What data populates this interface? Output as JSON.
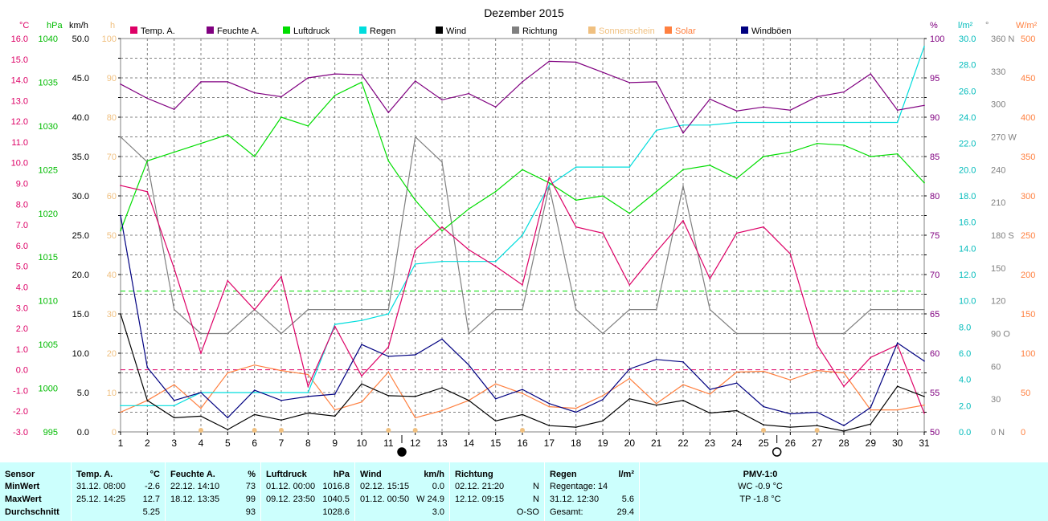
{
  "chart_data": {
    "type": "line",
    "title": "Dezember 2015",
    "x": [
      1,
      2,
      3,
      4,
      5,
      6,
      7,
      8,
      9,
      10,
      11,
      12,
      13,
      14,
      15,
      16,
      17,
      18,
      19,
      20,
      21,
      22,
      23,
      24,
      25,
      26,
      27,
      28,
      29,
      30,
      31
    ],
    "x_tick_labels": [
      "1",
      "2",
      "3",
      "4",
      "5",
      "6",
      "7",
      "8",
      "9",
      "10",
      "11",
      "12",
      "13",
      "14",
      "15",
      "16",
      "17",
      "18",
      "19",
      "20",
      "21",
      "22",
      "23",
      "24",
      "25",
      "26",
      "27",
      "28",
      "29",
      "30",
      "31"
    ],
    "left_axes": [
      {
        "unit": "°C",
        "range": [
          -3.0,
          16.0
        ],
        "tick_labels": [
          "16.0",
          "15.0",
          "14.0",
          "13.0",
          "12.0",
          "11.0",
          "10.0",
          "9.0",
          "8.0",
          "7.0",
          "6.0",
          "5.0",
          "4.0",
          "3.0",
          "2.0",
          "1.0",
          "0.0",
          "-1.0",
          "-2.0",
          "-3.0"
        ]
      },
      {
        "unit": "hPa",
        "range": [
          995,
          1040
        ],
        "tick_labels": [
          "1040",
          "1035",
          "1030",
          "1025",
          "1020",
          "1015",
          "1010",
          "1005",
          "1000",
          "995"
        ]
      },
      {
        "unit": "km/h",
        "range": [
          0.0,
          50.0
        ],
        "tick_labels": [
          "50.0",
          "45.0",
          "40.0",
          "35.0",
          "30.0",
          "25.0",
          "20.0",
          "15.0",
          "10.0",
          "5.0",
          "0.0"
        ]
      },
      {
        "unit": "h",
        "range": [
          0,
          100
        ],
        "tick_labels": [
          "100",
          "90",
          "80",
          "70",
          "60",
          "50",
          "40",
          "30",
          "20",
          "10",
          "0"
        ]
      }
    ],
    "right_axes": [
      {
        "unit": "%",
        "range": [
          50,
          100
        ],
        "tick_labels": [
          "100",
          "95",
          "90",
          "85",
          "80",
          "75",
          "70",
          "65",
          "60",
          "55",
          "50"
        ]
      },
      {
        "unit": "l/m²",
        "range": [
          0.0,
          30.0
        ],
        "tick_labels": [
          "30.0",
          "28.0",
          "26.0",
          "24.0",
          "22.0",
          "20.0",
          "18.0",
          "16.0",
          "14.0",
          "12.0",
          "10.0",
          "8.0",
          "6.0",
          "4.0",
          "2.0",
          "0.0"
        ]
      },
      {
        "unit": "°",
        "range": [
          0,
          360
        ],
        "tick_labels": [
          "360 N",
          "330",
          "300",
          "270 W",
          "240",
          "210",
          "180 S",
          "150",
          "120",
          "90  O",
          "60",
          "30",
          "0  N"
        ]
      },
      {
        "unit": "W/m²",
        "range": [
          0,
          500
        ],
        "tick_labels": [
          "500",
          "450",
          "400",
          "350",
          "300",
          "250",
          "200",
          "150",
          "100",
          "50",
          "0"
        ]
      }
    ],
    "legend": [
      "Temp. A.",
      "Feuchte A.",
      "Luftdruck",
      "Regen",
      "Wind",
      "Richtung",
      "Sonnenschein",
      "Solar",
      "Windböen"
    ],
    "legend_position": "top",
    "grid": true,
    "series": [
      {
        "name": "Temp. A.",
        "axis": "°C",
        "color": "#dd0066",
        "values": [
          8.9,
          8.6,
          4.9,
          0.8,
          4.3,
          2.9,
          4.5,
          -0.8,
          2.1,
          -0.3,
          1.1,
          5.8,
          6.9,
          5.8,
          5.0,
          4.1,
          9.3,
          6.9,
          6.6,
          4.1,
          5.7,
          7.2,
          4.4,
          6.6,
          6.9,
          5.6,
          1.2,
          -0.8,
          0.6,
          1.2,
          -2.1
        ]
      },
      {
        "name": "Feuchte A.",
        "axis": "%",
        "color": "#800080",
        "values": [
          94.2,
          92.4,
          91.0,
          94.5,
          94.5,
          93.1,
          92.6,
          95.0,
          95.5,
          95.4,
          90.6,
          94.6,
          92.2,
          93.0,
          91.3,
          94.5,
          97.1,
          97.0,
          95.7,
          94.4,
          94.5,
          88.0,
          92.3,
          90.8,
          91.3,
          90.9,
          92.6,
          93.2,
          95.5,
          90.9,
          91.5
        ]
      },
      {
        "name": "Luftdruck",
        "axis": "hPa",
        "color": "#00dd00",
        "values": [
          1018.0,
          1026.0,
          1027.0,
          1028.0,
          1029.0,
          1026.5,
          1031.0,
          1030.0,
          1033.5,
          1035.0,
          1026.0,
          1021.5,
          1018.0,
          1020.5,
          1022.5,
          1025.0,
          1023.5,
          1021.5,
          1022.0,
          1020.0,
          1022.5,
          1025.0,
          1025.5,
          1024.0,
          1026.5,
          1027.0,
          1028.0,
          1027.8,
          1026.5,
          1026.8,
          1023.5
        ]
      },
      {
        "name": "Regen",
        "axis": "l/m²",
        "color": "#00dddd",
        "values": [
          2.0,
          2.0,
          2.0,
          3.0,
          3.0,
          3.0,
          3.0,
          3.0,
          8.2,
          8.5,
          9.0,
          12.8,
          13.0,
          13.0,
          13.0,
          15.0,
          18.8,
          20.2,
          20.2,
          20.2,
          23.0,
          23.4,
          23.4,
          23.6,
          23.6,
          23.6,
          23.6,
          23.6,
          23.6,
          23.6,
          29.4
        ]
      },
      {
        "name": "Wind",
        "axis": "km/h",
        "color": "#000000",
        "values": [
          15.0,
          4.0,
          1.8,
          2.0,
          0.3,
          2.2,
          1.5,
          2.4,
          2.0,
          6.1,
          4.6,
          4.5,
          5.6,
          4.0,
          1.4,
          2.2,
          0.8,
          0.6,
          1.4,
          4.2,
          3.4,
          4.0,
          2.4,
          2.7,
          0.9,
          0.6,
          0.8,
          0.1,
          1.0,
          5.8,
          4.5
        ]
      },
      {
        "name": "Richtung",
        "axis": "°",
        "color": "#808080",
        "values": [
          270,
          247,
          112,
          90,
          90,
          112,
          90,
          112,
          112,
          112,
          112,
          270,
          247,
          90,
          112,
          112,
          225,
          112,
          90,
          112,
          112,
          225,
          112,
          90,
          90,
          90,
          90,
          90,
          112,
          112,
          112
        ]
      },
      {
        "name": "Solar",
        "axis": "W/m²",
        "color": "#ff8040",
        "values": [
          25,
          40,
          60,
          30,
          75,
          85,
          78,
          73,
          28,
          38,
          76,
          18,
          27,
          40,
          61,
          49,
          32,
          30,
          46,
          68,
          36,
          60,
          48,
          76,
          77,
          66,
          78,
          75,
          28,
          28,
          34
        ]
      },
      {
        "name": "Windböen",
        "axis": "km/h",
        "color": "#000080",
        "values": [
          27.5,
          8.2,
          4.0,
          5.0,
          1.8,
          5.3,
          4.0,
          4.5,
          4.8,
          11.1,
          9.6,
          9.8,
          11.8,
          8.5,
          4.2,
          5.4,
          3.6,
          2.5,
          4.1,
          8.0,
          9.2,
          8.9,
          5.4,
          6.2,
          3.2,
          2.3,
          2.5,
          0.8,
          3.1,
          11.3,
          9.0
        ]
      }
    ],
    "reference_lines": [
      {
        "axis": "°C",
        "value": 0.0,
        "color": "#dd0066",
        "style": "dashed"
      },
      {
        "axis": "°C",
        "value": 3.8,
        "color": "#00dd00",
        "style": "dashed"
      }
    ],
    "sunshine_marker_days": [
      4,
      6,
      7,
      11,
      12,
      16,
      25,
      27
    ],
    "moon_phase_markers": [
      {
        "day": 11.5,
        "phase": "new"
      },
      {
        "day": 25.5,
        "phase": "full"
      }
    ]
  },
  "stats": {
    "sensor": {
      "header": "Sensor",
      "rows": [
        "MinWert",
        "MaxWert",
        "Durchschnitt"
      ]
    },
    "temp": {
      "header": "Temp. A.",
      "unit": "°C",
      "min_time": "31.12.  08:00",
      "min_val": "-2.6",
      "max_time": "25.12.  14:25",
      "max_val": "12.7",
      "avg": "5.25"
    },
    "feuchte": {
      "header": "Feuchte A.",
      "unit": "%",
      "min_time": "22.12.  14:10",
      "min_val": "73",
      "max_time": "18.12.  13:35",
      "max_val": "99",
      "avg": "93"
    },
    "luftdruck": {
      "header": "Luftdruck",
      "unit": "hPa",
      "min_time": "01.12.  00:00",
      "min_val": "1016.8",
      "max_time": "09.12.  23:50",
      "max_val": "1040.5",
      "avg": "1028.6"
    },
    "wind": {
      "header": "Wind",
      "unit": "km/h",
      "min_time": "02.12.  15:15",
      "min_val": "0.0",
      "max_time": "01.12.  00:50",
      "max_val": "W 24.9",
      "avg": "3.0"
    },
    "richtung": {
      "header": "Richtung",
      "min_time": "02.12.  21:20",
      "min_val": "N",
      "max_time": "12.12.  09:15",
      "max_val": "N",
      "avg": "O-SO"
    },
    "regen": {
      "header": "Regen",
      "unit": "l/m²",
      "regentage": "Regentage: 14",
      "max_time": "31.12.  12:30",
      "max_val": "5.6",
      "gesamt_label": "Gesamt:",
      "gesamt_val": "29.4"
    },
    "pmv": {
      "header": "PMV-1:0",
      "wc": "WC -0.9 °C",
      "tp": "TP -1.8 °C"
    }
  }
}
